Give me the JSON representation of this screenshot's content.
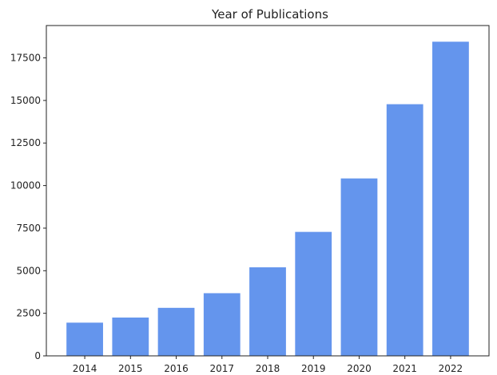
{
  "chart_data": {
    "type": "bar",
    "title": "Year of Publications",
    "xlabel": "",
    "ylabel": "",
    "categories": [
      "2014",
      "2015",
      "2016",
      "2017",
      "2018",
      "2019",
      "2020",
      "2021",
      "2022"
    ],
    "values": [
      1950,
      2250,
      2820,
      3680,
      5200,
      7280,
      10420,
      14780,
      18450
    ],
    "ylim": [
      0,
      19400
    ],
    "yticks": [
      0,
      2500,
      5000,
      7500,
      10000,
      12500,
      15000,
      17500
    ],
    "grid": false,
    "bar_color": "#6495ED"
  }
}
